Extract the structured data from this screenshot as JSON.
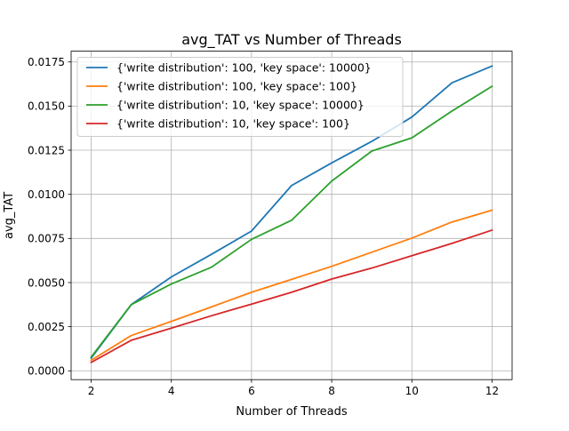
{
  "chart_data": {
    "type": "line",
    "title": "avg_TAT vs Number of Threads",
    "xlabel": "Number of Threads",
    "ylabel": "avg_TAT",
    "xlim": [
      1.5,
      12.5
    ],
    "ylim": [
      -0.0005,
      0.01811
    ],
    "x_ticks": [
      2,
      4,
      6,
      8,
      10,
      12
    ],
    "x_tick_labels": [
      "2",
      "4",
      "6",
      "8",
      "10",
      "12"
    ],
    "y_ticks": [
      0.0,
      0.0025,
      0.005,
      0.0075,
      0.01,
      0.0125,
      0.015,
      0.0175
    ],
    "y_tick_labels": [
      "0.0000",
      "0.0025",
      "0.0050",
      "0.0075",
      "0.0100",
      "0.0125",
      "0.0150",
      "0.0175"
    ],
    "grid": true,
    "legend_position": "top-left",
    "x": [
      2,
      3,
      4,
      5,
      6,
      7,
      8,
      9,
      10,
      11,
      12
    ],
    "series": [
      {
        "name": "{'write distribution': 100, 'key space': 10000}",
        "color": "#1f77b4",
        "values": [
          0.00072,
          0.00375,
          0.00532,
          0.0066,
          0.00792,
          0.0105,
          0.01178,
          0.013,
          0.01438,
          0.01632,
          0.01727
        ]
      },
      {
        "name": "{'write distribution': 100, 'key space': 100}",
        "color": "#ff7f0e",
        "values": [
          0.0006,
          0.002,
          0.0028,
          0.00362,
          0.00445,
          0.00518,
          0.00592,
          0.00672,
          0.00752,
          0.00843,
          0.0091
        ]
      },
      {
        "name": "{'write distribution': 10, 'key space': 10000}",
        "color": "#2ca02c",
        "values": [
          0.00078,
          0.00375,
          0.00492,
          0.00587,
          0.00745,
          0.00853,
          0.01075,
          0.01245,
          0.0132,
          0.01472,
          0.01612
        ]
      },
      {
        "name": "{'write distribution': 10, 'key space': 100}",
        "color": "#d62728",
        "values": [
          0.00048,
          0.00173,
          0.00242,
          0.00312,
          0.00378,
          0.00445,
          0.0052,
          0.00582,
          0.00652,
          0.00722,
          0.00797
        ]
      }
    ]
  }
}
